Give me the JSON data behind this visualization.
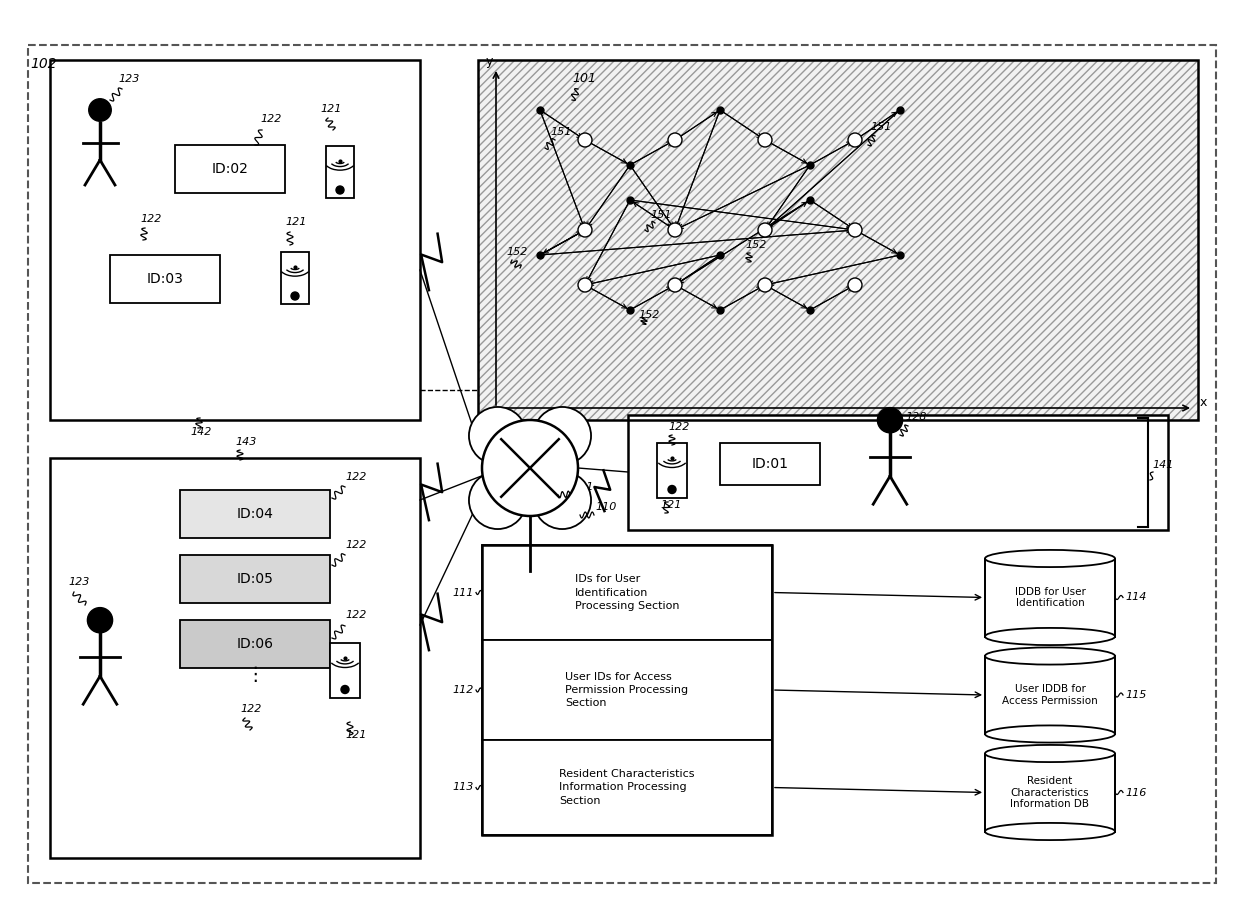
{
  "bg_color": "#ffffff",
  "section_labels": [
    "IDs for User\nIdentification\nProcessing Section",
    "User IDs for Access\nPermission Processing\nSection",
    "Resident Characteristics\nInformation Processing\nSection"
  ],
  "db_labels": [
    "IDDB for User\nIdentification",
    "User IDDB for\nAccess Permission",
    "Resident\nCharacteristics\nInformation DB"
  ]
}
